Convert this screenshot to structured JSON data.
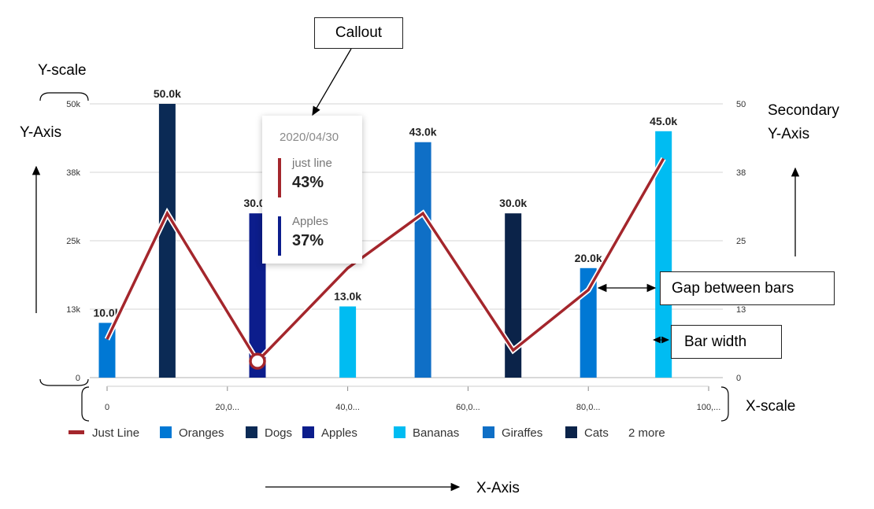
{
  "annotations": {
    "callout": "Callout",
    "y_scale": "Y-scale",
    "y_axis": "Y-Axis",
    "secondary_y_axis_line1": "Secondary",
    "secondary_y_axis_line2": "Y-Axis",
    "gap_between_bars": "Gap between bars",
    "bar_width": "Bar width",
    "x_scale": "X-scale",
    "x_axis": "X-Axis"
  },
  "tooltip": {
    "date": "2020/04/30",
    "items": [
      {
        "name": "just line",
        "value": "43%",
        "color": "#a4262c"
      },
      {
        "name": "Apples",
        "value": "37%",
        "color": "#0c1d8c"
      }
    ]
  },
  "chart_data": {
    "type": "bar",
    "title": "",
    "xlabel": "",
    "ylabel": "",
    "xlim": [
      0,
      100000
    ],
    "ylim": [
      0,
      50000
    ],
    "secondary_ylim": [
      0,
      50
    ],
    "y_ticks": [
      "0",
      "13k",
      "25k",
      "38k",
      "50k"
    ],
    "y_tick_values": [
      0,
      12500,
      25000,
      37500,
      50000
    ],
    "secondary_y_ticks": [
      "0",
      "13",
      "25",
      "38",
      "50"
    ],
    "x_ticks": [
      "0",
      "20,0...",
      "40,0...",
      "60,0...",
      "80,0...",
      "100,..."
    ],
    "x_tick_values": [
      0,
      20000,
      40000,
      60000,
      80000,
      100000
    ],
    "bars": [
      {
        "x": 0,
        "value": 10000,
        "label": "10.0k",
        "series": "Oranges",
        "color": "#0078d4"
      },
      {
        "x": 10000,
        "value": 50000,
        "label": "50.0k",
        "series": "Dogs",
        "color": "#0b2a55"
      },
      {
        "x": 25000,
        "value": 30000,
        "label": "30.0k",
        "series": "Apples",
        "color": "#0c1d8c"
      },
      {
        "x": 40000,
        "value": 13000,
        "label": "13.0k",
        "series": "Bananas",
        "color": "#00bcf2"
      },
      {
        "x": 52500,
        "value": 43000,
        "label": "43.0k",
        "series": "Giraffes",
        "color": "#0f6fc6"
      },
      {
        "x": 67500,
        "value": 30000,
        "label": "30.0k",
        "series": "Cats",
        "color": "#0b2349"
      },
      {
        "x": 80000,
        "value": 20000,
        "label": "20.0k",
        "series": "Oranges",
        "color": "#0078d4"
      },
      {
        "x": 92500,
        "value": 45000,
        "label": "45.0k",
        "series": "Bananas",
        "color": "#00bcf2"
      }
    ],
    "line_series": {
      "name": "Just Line",
      "color": "#a4262c",
      "x": [
        0,
        10000,
        25000,
        40000,
        52500,
        67500,
        80000,
        92500
      ],
      "y": [
        7,
        30,
        3,
        20,
        30,
        5,
        16,
        40
      ],
      "axis": "secondary",
      "highlight_x": 25000
    },
    "legend": {
      "placement": "bottom",
      "items": [
        {
          "name": "Just Line",
          "color": "#a4262c",
          "kind": "line"
        },
        {
          "name": "Oranges",
          "color": "#0078d4",
          "kind": "bar"
        },
        {
          "name": "Dogs",
          "color": "#0b2a55",
          "kind": "bar"
        },
        {
          "name": "Apples",
          "color": "#0c1d8c",
          "kind": "bar"
        },
        {
          "name": "Bananas",
          "color": "#00bcf2",
          "kind": "bar"
        },
        {
          "name": "Giraffes",
          "color": "#0f6fc6",
          "kind": "bar"
        },
        {
          "name": "Cats",
          "color": "#0b2349",
          "kind": "bar"
        }
      ],
      "more": "2 more"
    }
  }
}
